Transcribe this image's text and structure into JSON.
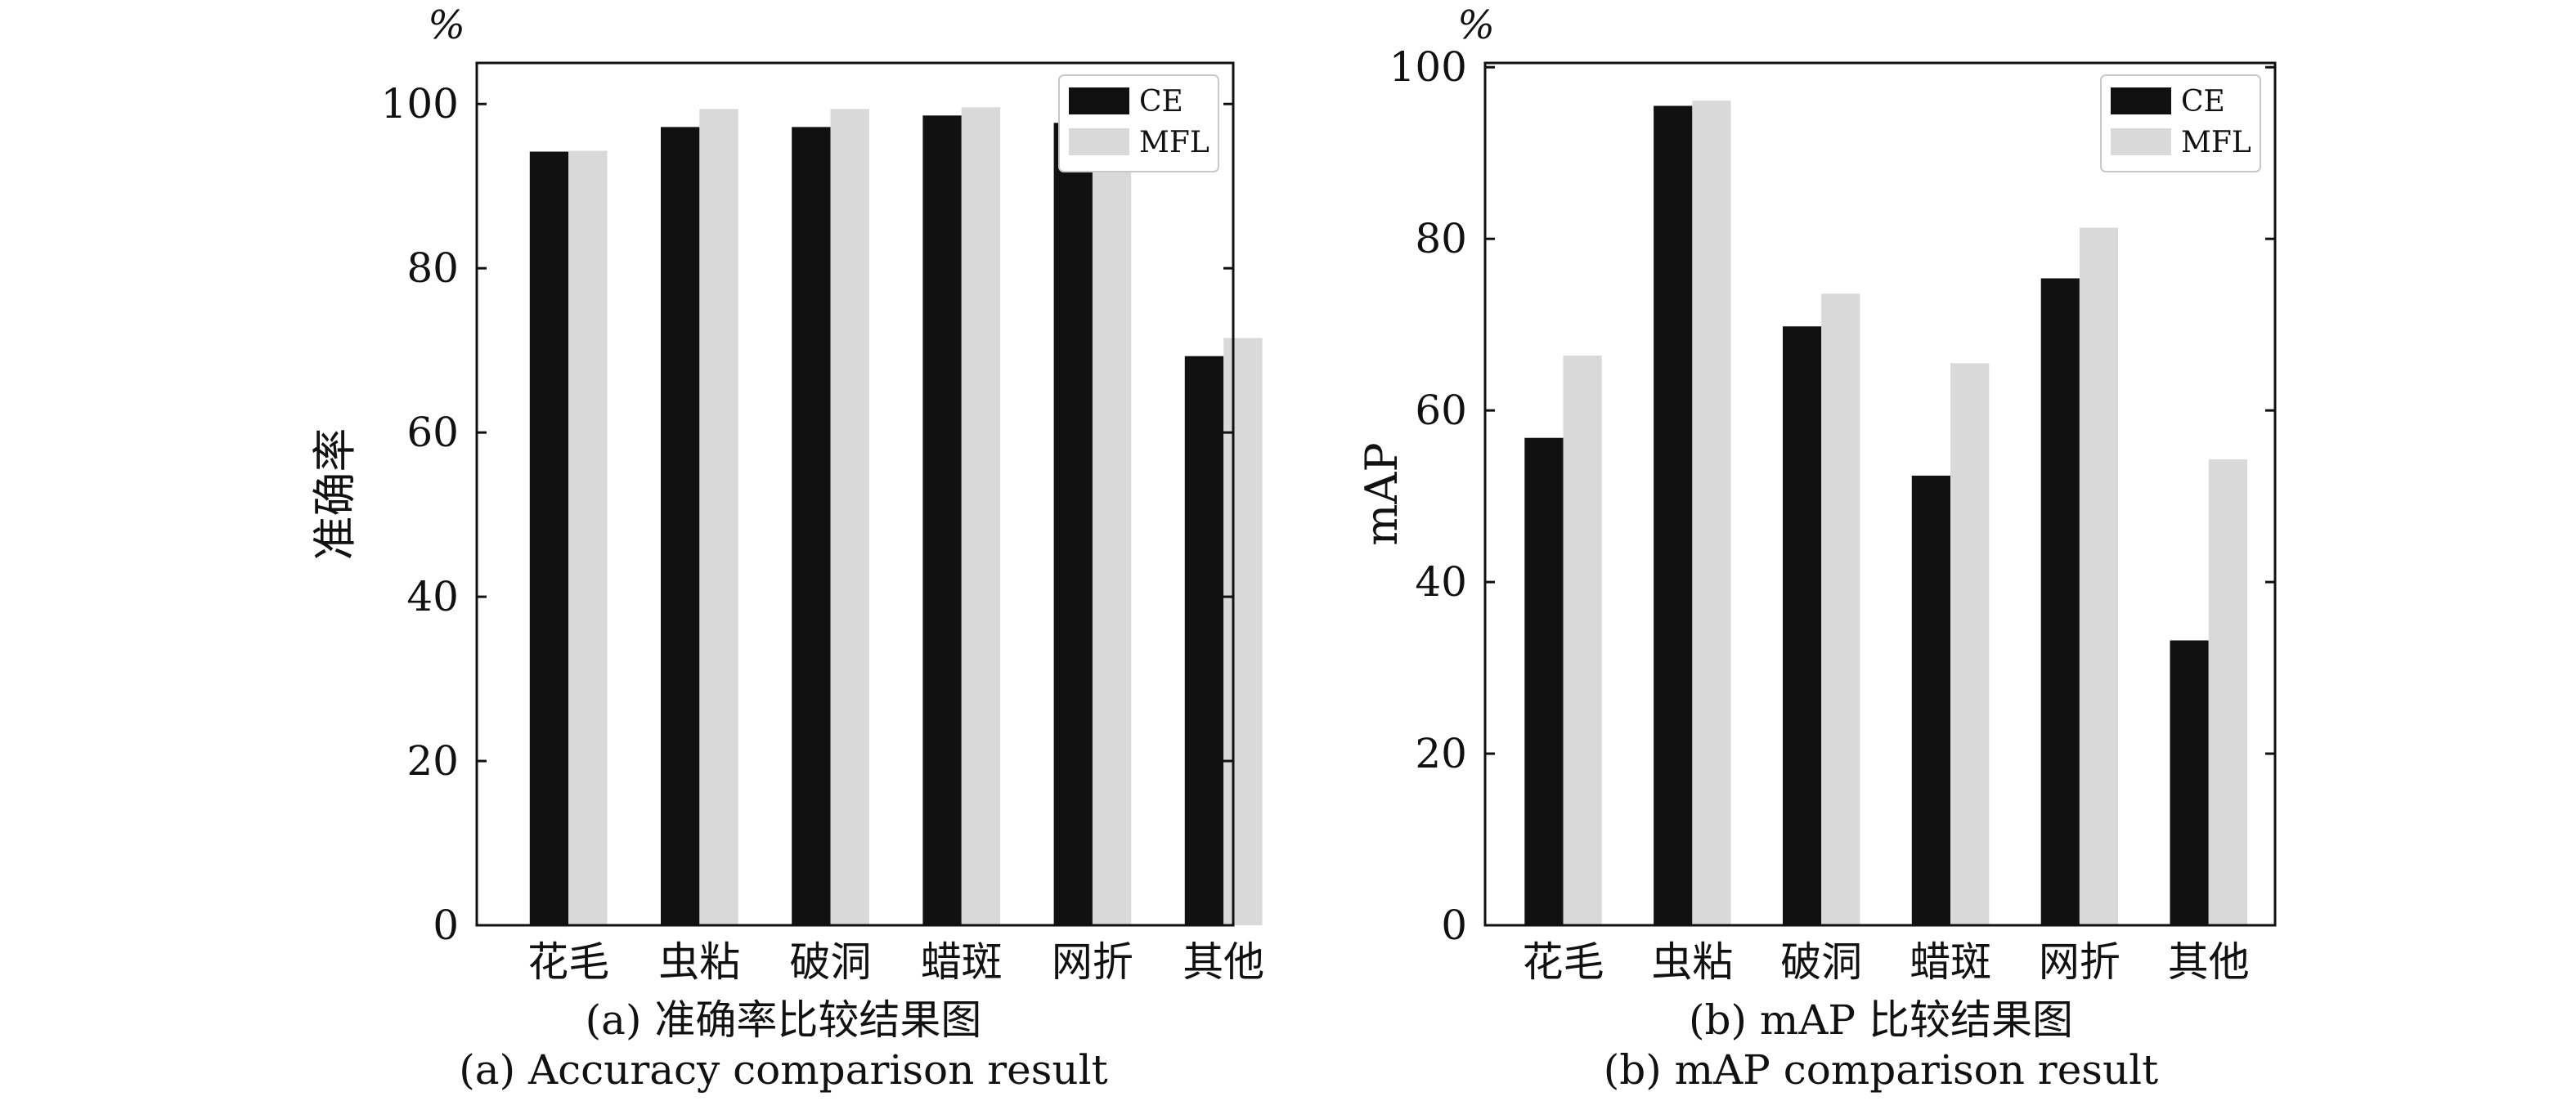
{
  "colors": {
    "ce": "#111111",
    "mfl": "#d9d9d9",
    "axis": "#111111"
  },
  "chart_data": [
    {
      "type": "bar",
      "unit": "%",
      "ylabel": "准确率",
      "ylim": [
        0,
        105
      ],
      "yticks": [
        0,
        20,
        40,
        60,
        80,
        100
      ],
      "legend_position": "top-right",
      "categories": [
        "花毛",
        "虫粘",
        "破洞",
        "蜡斑",
        "网折",
        "其他"
      ],
      "series": [
        {
          "name": "CE",
          "values": [
            94.2,
            97.2,
            97.2,
            98.6,
            97.7,
            69.3
          ]
        },
        {
          "name": "MFL",
          "values": [
            94.3,
            99.4,
            99.4,
            99.6,
            100.0,
            71.5
          ]
        }
      ],
      "caption_zh": "(a) 准确率比较结果图",
      "caption_en": "(a) Accuracy comparison result"
    },
    {
      "type": "bar",
      "unit": "%",
      "ylabel": "mAP",
      "ylim": [
        0,
        100.5
      ],
      "yticks": [
        0,
        20,
        40,
        60,
        80,
        100
      ],
      "legend_position": "top-right",
      "categories": [
        "花毛",
        "虫粘",
        "破洞",
        "蜡斑",
        "网折",
        "其他"
      ],
      "series": [
        {
          "name": "CE",
          "values": [
            56.8,
            95.5,
            69.8,
            52.4,
            75.4,
            33.2
          ]
        },
        {
          "name": "MFL",
          "values": [
            66.4,
            96.1,
            73.6,
            65.5,
            81.3,
            54.3
          ]
        }
      ],
      "caption_zh": "(b) mAP 比较结果图",
      "caption_en": "(b) mAP comparison result"
    }
  ]
}
